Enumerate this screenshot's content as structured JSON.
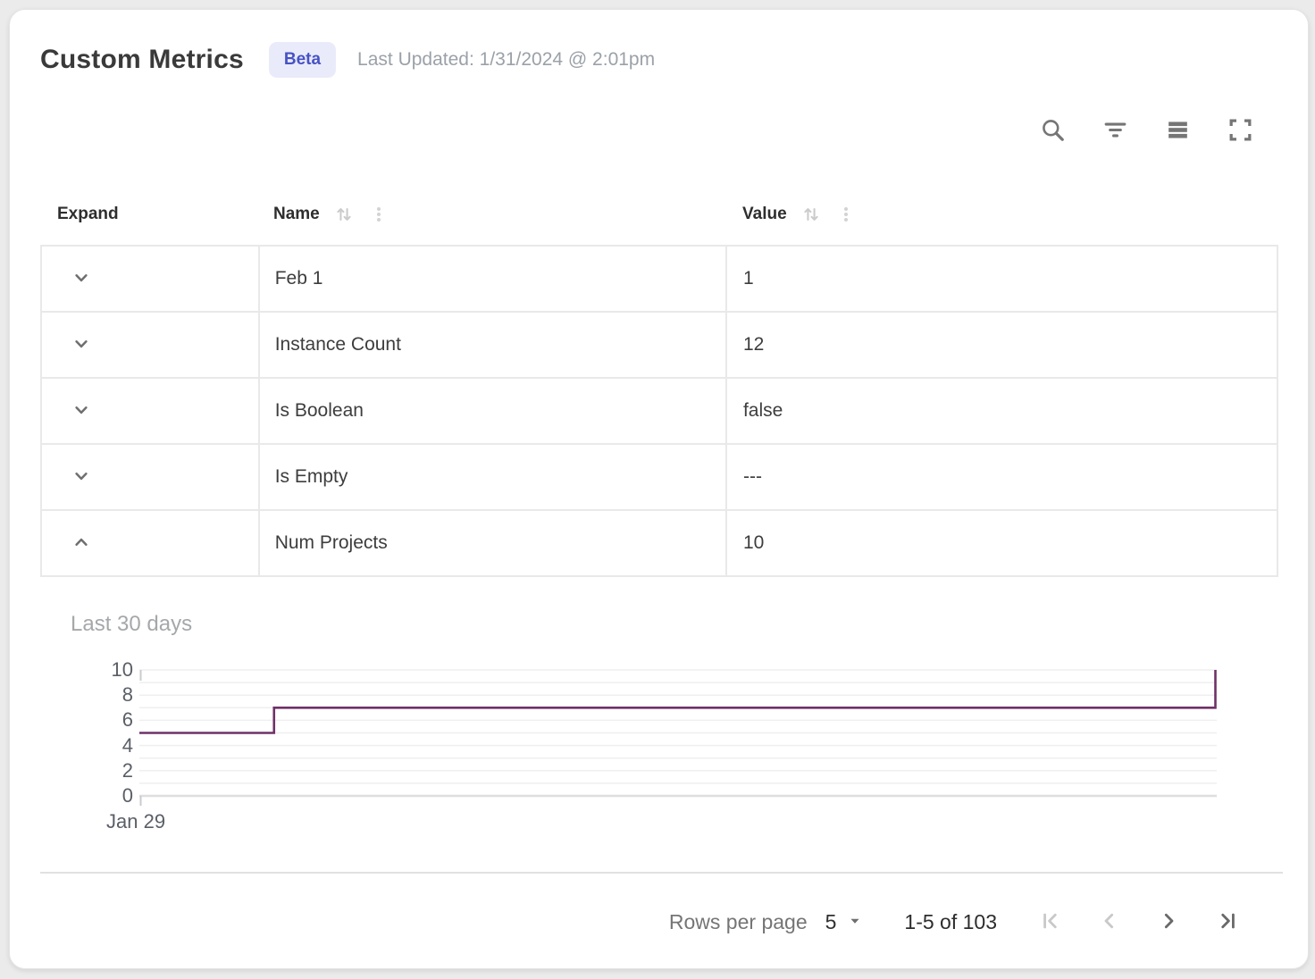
{
  "header": {
    "title": "Custom Metrics",
    "badge": "Beta",
    "last_updated": "Last Updated: 1/31/2024 @ 2:01pm"
  },
  "toolbar": {
    "icons": [
      "search-icon",
      "filter-icon",
      "density-icon",
      "fullscreen-icon"
    ]
  },
  "table": {
    "columns": [
      {
        "label": "Expand",
        "sortable": false,
        "has_menu": false
      },
      {
        "label": "Name",
        "sortable": true,
        "has_menu": true
      },
      {
        "label": "Value",
        "sortable": true,
        "has_menu": true
      }
    ],
    "rows": [
      {
        "name": "Feb 1",
        "value": "1",
        "expanded": false
      },
      {
        "name": "Instance Count",
        "value": "12",
        "expanded": false
      },
      {
        "name": "Is Boolean",
        "value": "false",
        "expanded": false
      },
      {
        "name": "Is Empty",
        "value": "---",
        "expanded": false
      },
      {
        "name": "Num Projects",
        "value": "10",
        "expanded": true
      }
    ]
  },
  "chart_data": {
    "type": "line",
    "step": "after",
    "title": "Last 30 days",
    "series": [
      {
        "name": "Num Projects",
        "color": "#6F3168",
        "points": [
          [
            0,
            5
          ],
          [
            0.125,
            7
          ],
          [
            1,
            10
          ]
        ]
      }
    ],
    "ylim": [
      0,
      10
    ],
    "y_tick_labels": [
      0,
      2,
      4,
      6,
      8,
      10
    ],
    "gridline_step": 1,
    "grid": true,
    "legend": "none",
    "x_tick_labels": [
      "Jan 29"
    ],
    "xlabel": "",
    "ylabel": ""
  },
  "pagination": {
    "rows_per_page_label": "Rows per page",
    "rows_per_page_value": "5",
    "range_label": "1-5 of 103",
    "controls": [
      {
        "name": "first-page",
        "enabled": false
      },
      {
        "name": "previous-page",
        "enabled": false
      },
      {
        "name": "next-page",
        "enabled": true
      },
      {
        "name": "last-page",
        "enabled": true
      }
    ]
  },
  "colors": {
    "accent": "#4752c4",
    "badge_bg": "#e9ebfa",
    "series_line": "#6F3168",
    "grid_line": "#efefef"
  }
}
